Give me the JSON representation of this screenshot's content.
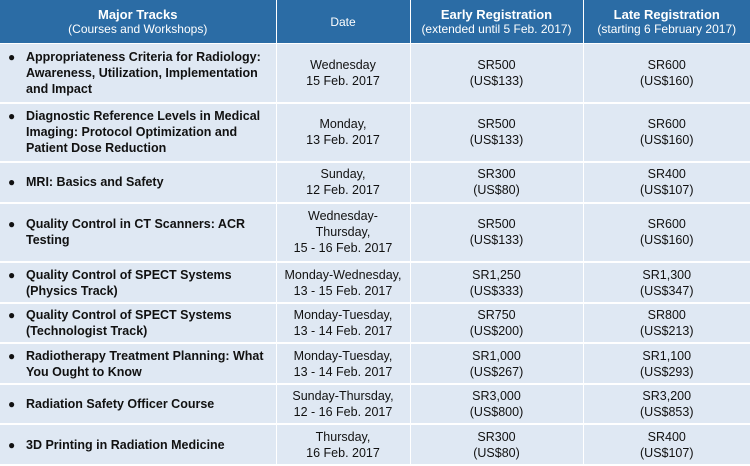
{
  "header": {
    "track_title": "Major Tracks",
    "track_subtitle": "(Courses and Workshops)",
    "date": "Date",
    "early_title": "Early Registration",
    "early_subtitle": "(extended until 5 Feb. 2017)",
    "late_title": "Late Registration",
    "late_subtitle": "(starting 6 February 2017)"
  },
  "rows": [
    {
      "track": "Appropriateness Criteria for Radiology: Awareness, Utilization, Implementation and Impact",
      "date_line1": "Wednesday",
      "date_line2": "15 Feb. 2017",
      "early_sr": "SR500",
      "early_usd": "(US$133)",
      "late_sr": "SR600",
      "late_usd": "(US$160)"
    },
    {
      "track": "Diagnostic Reference Levels in Medical Imaging: Protocol Optimization and Patient Dose Reduction",
      "date_line1": "Monday,",
      "date_line2": "13 Feb. 2017",
      "early_sr": "SR500",
      "early_usd": "(US$133)",
      "late_sr": "SR600",
      "late_usd": "(US$160)"
    },
    {
      "track": "MRI: Basics and Safety",
      "date_line1": "Sunday,",
      "date_line2": "12 Feb. 2017",
      "early_sr": "SR300",
      "early_usd": "(US$80)",
      "late_sr": "SR400",
      "late_usd": "(US$107)"
    },
    {
      "track": "Quality Control in CT Scanners:  ACR Testing",
      "date_line1": "Wednesday-",
      "date_line2": "Thursday,",
      "date_line3": "15 - 16 Feb. 2017",
      "early_sr": "SR500",
      "early_usd": "(US$133)",
      "late_sr": "SR600",
      "late_usd": "(US$160)"
    },
    {
      "track": "Quality Control of SPECT Systems (Physics Track)",
      "date_line1": "Monday-Wednesday,",
      "date_line2": "13 - 15 Feb. 2017",
      "early_sr": "SR1,250",
      "early_usd": "(US$333)",
      "late_sr": "SR1,300",
      "late_usd": "(US$347)"
    },
    {
      "track": "Quality Control of SPECT Systems (Technologist Track)",
      "date_line1": "Monday-Tuesday,",
      "date_line2": "13 - 14 Feb. 2017",
      "early_sr": "SR750",
      "early_usd": "(US$200)",
      "late_sr": "SR800",
      "late_usd": "(US$213)"
    },
    {
      "track": "Radiotherapy Treatment Planning: What You Ought to Know",
      "date_line1": "Monday-Tuesday,",
      "date_line2": "13 - 14 Feb. 2017",
      "early_sr": "SR1,000",
      "early_usd": "(US$267)",
      "late_sr": "SR1,100",
      "late_usd": "(US$293)"
    },
    {
      "track": "Radiation Safety Officer Course",
      "date_line1": "Sunday-Thursday,",
      "date_line2": "12 - 16 Feb. 2017",
      "early_sr": "SR3,000",
      "early_usd": "(US$800)",
      "late_sr": "SR3,200",
      "late_usd": "(US$853)"
    },
    {
      "track": "3D Printing in Radiation Medicine",
      "date_line1": "Thursday,",
      "date_line2": "16 Feb. 2017",
      "early_sr": "SR300",
      "early_usd": "(US$80)",
      "late_sr": "SR400",
      "late_usd": "(US$107)"
    }
  ]
}
